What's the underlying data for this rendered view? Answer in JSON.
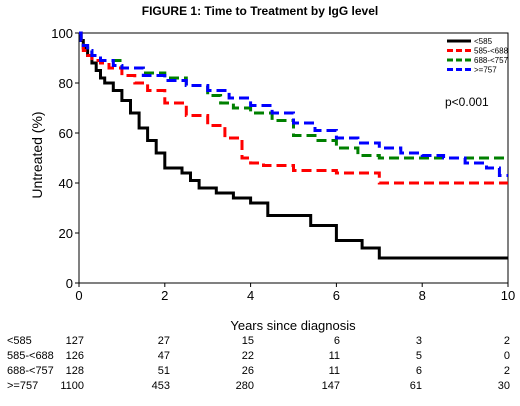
{
  "chart_data": {
    "type": "line",
    "title": "FIGURE 1: Time to Treatment by IgG level",
    "xlabel": "Years since diagnosis",
    "ylabel": "Untreated (%)",
    "xlim": [
      0,
      10
    ],
    "ylim": [
      0,
      100
    ],
    "x_ticks": [
      "0",
      "2",
      "4",
      "6",
      "8",
      "10"
    ],
    "y_ticks": [
      "0",
      "20",
      "40",
      "60",
      "80",
      "100"
    ],
    "grid": false,
    "legend_position": "top-right",
    "annotation": "p<0.001",
    "step": true,
    "series": [
      {
        "name": "<585",
        "color": "#000000",
        "dash": "solid",
        "x": [
          0,
          0.05,
          0.1,
          0.2,
          0.3,
          0.4,
          0.5,
          0.6,
          0.8,
          1.0,
          1.2,
          1.4,
          1.6,
          1.8,
          2.0,
          2.4,
          2.6,
          2.8,
          3.2,
          3.6,
          4.0,
          4.4,
          5.0,
          5.4,
          6.0,
          6.6,
          7.0,
          10.0
        ],
        "y": [
          100,
          97,
          94,
          91,
          88,
          85,
          82,
          80,
          77,
          73,
          68,
          62,
          57,
          52,
          46,
          44,
          41,
          38,
          36,
          34,
          32,
          27,
          27,
          23,
          17,
          14,
          10,
          10
        ]
      },
      {
        "name": "585-<688",
        "color": "#ff0000",
        "dash": "dashed",
        "x": [
          0,
          0.05,
          0.1,
          0.2,
          0.3,
          0.5,
          0.7,
          1.0,
          1.3,
          1.6,
          2.0,
          2.5,
          3.0,
          3.4,
          3.8,
          4.0,
          4.3,
          5.0,
          6.0,
          7.0,
          8.0,
          10.0
        ],
        "y": [
          100,
          96,
          93,
          91,
          89,
          88,
          86,
          83,
          80,
          77,
          72,
          67,
          63,
          58,
          50,
          48,
          47,
          45,
          44,
          40,
          40,
          40
        ]
      },
      {
        "name": "688-<757",
        "color": "#008000",
        "dash": "dashed",
        "x": [
          0,
          0.05,
          0.1,
          0.2,
          0.3,
          0.5,
          1.0,
          1.5,
          2.0,
          2.5,
          3.0,
          3.3,
          3.6,
          4.0,
          4.5,
          5.0,
          5.5,
          6.0,
          6.5,
          7.0,
          8.0,
          10.0
        ],
        "y": [
          100,
          97,
          95,
          93,
          91,
          89,
          86,
          84,
          82,
          79,
          75,
          72,
          70,
          68,
          65,
          59,
          57,
          54,
          51,
          50,
          50,
          50
        ]
      },
      {
        "name": ">=757",
        "color": "#0000ff",
        "dash": "dashed",
        "x": [
          0,
          0.05,
          0.1,
          0.2,
          0.3,
          0.5,
          0.8,
          1.0,
          1.5,
          2.0,
          2.5,
          3.0,
          3.5,
          4.0,
          4.5,
          5.0,
          5.5,
          6.0,
          6.5,
          7.0,
          7.5,
          8.0,
          8.5,
          9.0,
          9.5,
          9.8,
          10.0
        ],
        "y": [
          100,
          97,
          95,
          93,
          91,
          89,
          87,
          86,
          83,
          81,
          79,
          77,
          74,
          71,
          68,
          64,
          61,
          58,
          56,
          54,
          52,
          51,
          50,
          48,
          46,
          43,
          43
        ]
      }
    ],
    "risk_table": {
      "columns": [
        "0",
        "2",
        "4",
        "6",
        "8",
        "10"
      ],
      "rows": [
        {
          "label": "<585",
          "values": [
            "127",
            "27",
            "15",
            "6",
            "3",
            "2"
          ]
        },
        {
          "label": "585-<688",
          "values": [
            "126",
            "47",
            "22",
            "11",
            "5",
            "0"
          ]
        },
        {
          "label": "688-<757",
          "values": [
            "128",
            "51",
            "26",
            "11",
            "6",
            "2"
          ]
        },
        {
          "label": ">=757",
          "values": [
            "1100",
            "453",
            "280",
            "147",
            "61",
            "30"
          ]
        }
      ]
    }
  }
}
